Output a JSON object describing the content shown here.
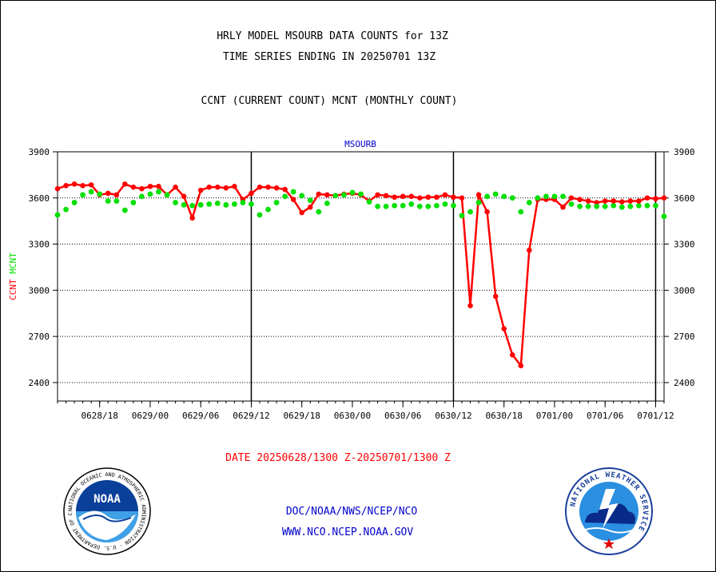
{
  "header": {
    "title_line1": "HRLY MODEL MSOURB DATA COUNTS for 13Z",
    "title_line2": "TIME SERIES ENDING IN 20250701 13Z",
    "subtitle": "CCNT (CURRENT COUNT) MCNT (MONTHLY COUNT)"
  },
  "footer": {
    "date_range": "DATE 20250628/1300 Z-20250701/1300 Z",
    "link1": "DOC/NOAA/NWS/NCEP/NCO",
    "link2": "WWW.NCO.NCEP.NOAA.GOV"
  },
  "logos": {
    "noaa_text": "NOAA",
    "noaa_ring": "NATIONAL OCEANIC AND ATMOSPHERIC ADMINISTRATION · U.S. DEPARTMENT OF COMMERCE",
    "nws_ring": "NATIONAL WEATHER SERVICE"
  },
  "colors": {
    "ccnt": "#ff0000",
    "mcnt": "#00e000",
    "label_blue": "#0000cc",
    "date_red": "#ff0000"
  },
  "chart_data": {
    "type": "line",
    "title": "MSOURB",
    "ylabel_parts": [
      {
        "text": "CCNT",
        "color": "#ff0000"
      },
      {
        "text": "MCNT",
        "color": "#00e000"
      }
    ],
    "ylim": [
      2280,
      3900
    ],
    "yticks": [
      2400,
      2700,
      3000,
      3300,
      3600,
      3900
    ],
    "xlim": [
      0,
      72
    ],
    "xticks": [
      {
        "x": 5,
        "label": "0628/18"
      },
      {
        "x": 11,
        "label": "0629/00"
      },
      {
        "x": 17,
        "label": "0629/06"
      },
      {
        "x": 23,
        "label": "0629/12"
      },
      {
        "x": 29,
        "label": "0629/18"
      },
      {
        "x": 35,
        "label": "0630/00"
      },
      {
        "x": 41,
        "label": "0630/06"
      },
      {
        "x": 47,
        "label": "0630/12"
      },
      {
        "x": 53,
        "label": "0630/18"
      },
      {
        "x": 59,
        "label": "0701/00"
      },
      {
        "x": 65,
        "label": "0701/06"
      },
      {
        "x": 71,
        "label": "0701/12"
      }
    ],
    "day_boundaries": [
      23,
      47,
      71
    ],
    "grid": "horizontal dotted",
    "series": [
      {
        "name": "CCNT",
        "color": "#ff0000",
        "values": [
          3660,
          3680,
          3690,
          3680,
          3685,
          3620,
          3630,
          3620,
          3690,
          3670,
          3660,
          3675,
          3675,
          3620,
          3670,
          3610,
          3470,
          3650,
          3670,
          3670,
          3665,
          3675,
          3590,
          3630,
          3670,
          3670,
          3665,
          3655,
          3590,
          3505,
          3540,
          3625,
          3620,
          3615,
          3625,
          3630,
          3620,
          3580,
          3620,
          3615,
          3605,
          3610,
          3610,
          3600,
          3605,
          3605,
          3620,
          3605,
          3600,
          2900,
          3620,
          3510,
          2960,
          2750,
          2580,
          2510,
          3260,
          3590,
          3590,
          3590,
          3540,
          3600,
          3590,
          3580,
          3570,
          3580,
          3580,
          3575,
          3580,
          3580,
          3600,
          3595,
          3600
        ]
      },
      {
        "name": "MCNT",
        "color": "#00e000",
        "values": [
          3490,
          3525,
          3570,
          3620,
          3640,
          3625,
          3580,
          3580,
          3520,
          3570,
          3610,
          3625,
          3640,
          3620,
          3570,
          3555,
          3550,
          3555,
          3560,
          3565,
          3555,
          3560,
          3570,
          3560,
          3490,
          3525,
          3570,
          3610,
          3640,
          3615,
          3585,
          3510,
          3565,
          3615,
          3620,
          3635,
          3625,
          3575,
          3545,
          3545,
          3550,
          3550,
          3560,
          3545,
          3545,
          3550,
          3560,
          3550,
          3485,
          3510,
          3570,
          3610,
          3625,
          3610,
          3600,
          3510,
          3570,
          3600,
          3610,
          3610,
          3610,
          3560,
          3545,
          3545,
          3545,
          3545,
          3550,
          3540,
          3545,
          3550,
          3550,
          3550,
          3480
        ]
      }
    ]
  }
}
